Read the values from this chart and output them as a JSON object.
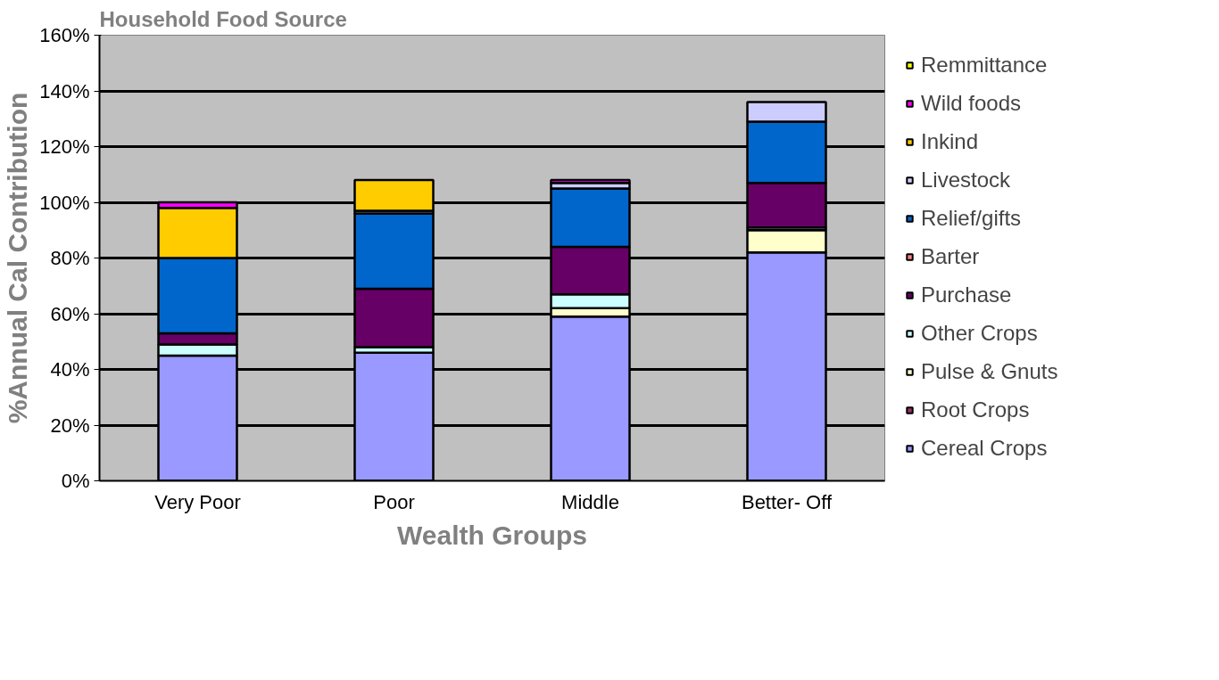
{
  "chart_data": {
    "type": "bar",
    "stacked": true,
    "title": "Household Food Source",
    "xlabel": "Wealth Groups",
    "ylabel": "%Annual Cal Contribution",
    "categories": [
      "Very Poor",
      "Poor",
      "Middle",
      "Better- Off"
    ],
    "series": [
      {
        "name": "Cereal Crops",
        "color": "#9999ff",
        "values": [
          45,
          46,
          59,
          82
        ]
      },
      {
        "name": "Root Crops",
        "color": "#993366",
        "values": [
          null,
          null,
          null,
          null
        ]
      },
      {
        "name": "Pulse & Gnuts",
        "color": "#ffffcc",
        "values": [
          null,
          null,
          3,
          8
        ]
      },
      {
        "name": "Other Crops",
        "color": "#ccffff",
        "values": [
          4,
          2,
          5,
          1
        ]
      },
      {
        "name": "Purchase",
        "color": "#660066",
        "values": [
          4,
          21,
          17,
          16
        ]
      },
      {
        "name": "Barter",
        "color": "#ff8080",
        "values": [
          null,
          null,
          null,
          null
        ]
      },
      {
        "name": "Relief/gifts",
        "color": "#0066cc",
        "values": [
          27,
          27,
          21,
          22
        ]
      },
      {
        "name": "Livestock",
        "color": "#ccccff",
        "values": [
          null,
          1,
          2,
          7
        ]
      },
      {
        "name": "Inkind",
        "color": "#ffcc00",
        "values": [
          18,
          11,
          null,
          null
        ]
      },
      {
        "name": "Wild foods",
        "color": "#ff00ff",
        "values": [
          2,
          null,
          1,
          null
        ]
      },
      {
        "name": "Remmittance",
        "color": "#ffff00",
        "values": [
          null,
          null,
          null,
          null
        ]
      }
    ],
    "ylim": [
      0,
      160
    ],
    "yticks": [
      {
        "value": 0,
        "label": "0%"
      },
      {
        "value": 20,
        "label": "20%"
      },
      {
        "value": 40,
        "label": "40%"
      },
      {
        "value": 60,
        "label": "60%"
      },
      {
        "value": 80,
        "label": "80%"
      },
      {
        "value": 100,
        "label": "100%"
      },
      {
        "value": 120,
        "label": "120%"
      },
      {
        "value": 140,
        "label": "140%"
      },
      {
        "value": 160,
        "label": "160%"
      }
    ],
    "grid": "y",
    "legend": "right"
  }
}
